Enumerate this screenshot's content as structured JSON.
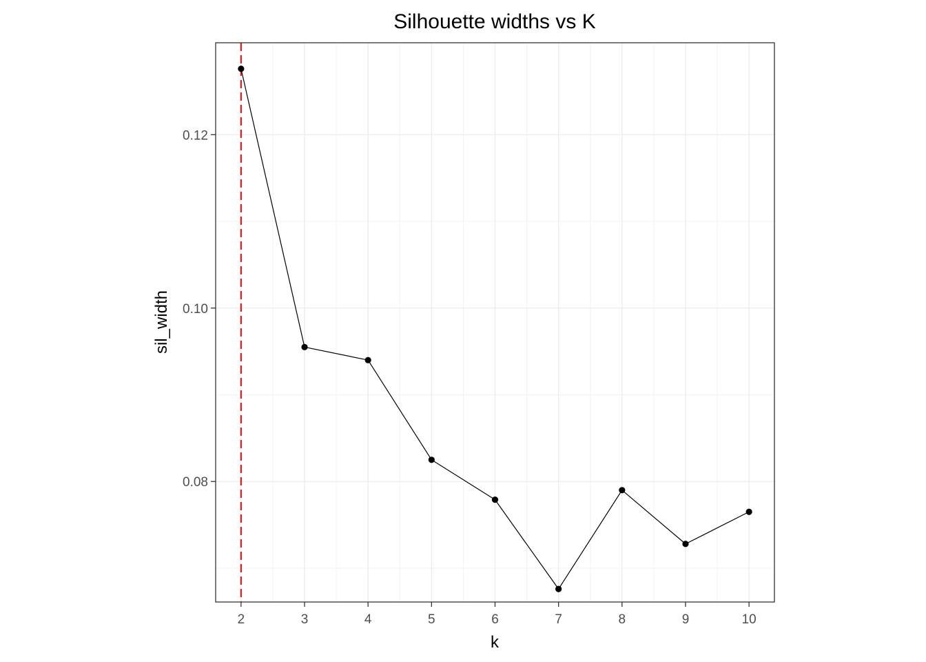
{
  "chart_data": {
    "type": "line",
    "title": "Silhouette widths vs K",
    "xlabel": "k",
    "ylabel": "sil_width",
    "x": [
      2,
      3,
      4,
      5,
      6,
      7,
      8,
      9,
      10
    ],
    "y": [
      0.1276,
      0.0955,
      0.094,
      0.0825,
      0.0779,
      0.0676,
      0.079,
      0.0728,
      0.0765
    ],
    "xlim": [
      1.6,
      10.4
    ],
    "ylim": [
      0.0661,
      0.1306
    ],
    "x_ticks": [
      "2",
      "3",
      "4",
      "5",
      "6",
      "7",
      "8",
      "9",
      "10"
    ],
    "x_tick_values": [
      2,
      3,
      4,
      5,
      6,
      7,
      8,
      9,
      10
    ],
    "y_ticks": [
      "0.08",
      "0.10",
      "0.12"
    ],
    "y_tick_values": [
      0.08,
      0.1,
      0.12
    ],
    "y_minor_values": [
      0.07,
      0.09,
      0.11
    ],
    "vline": {
      "x": 2,
      "color": "#ff0000",
      "style": "dashed"
    },
    "series_color": "#000000",
    "grid": true,
    "legend": "none"
  }
}
